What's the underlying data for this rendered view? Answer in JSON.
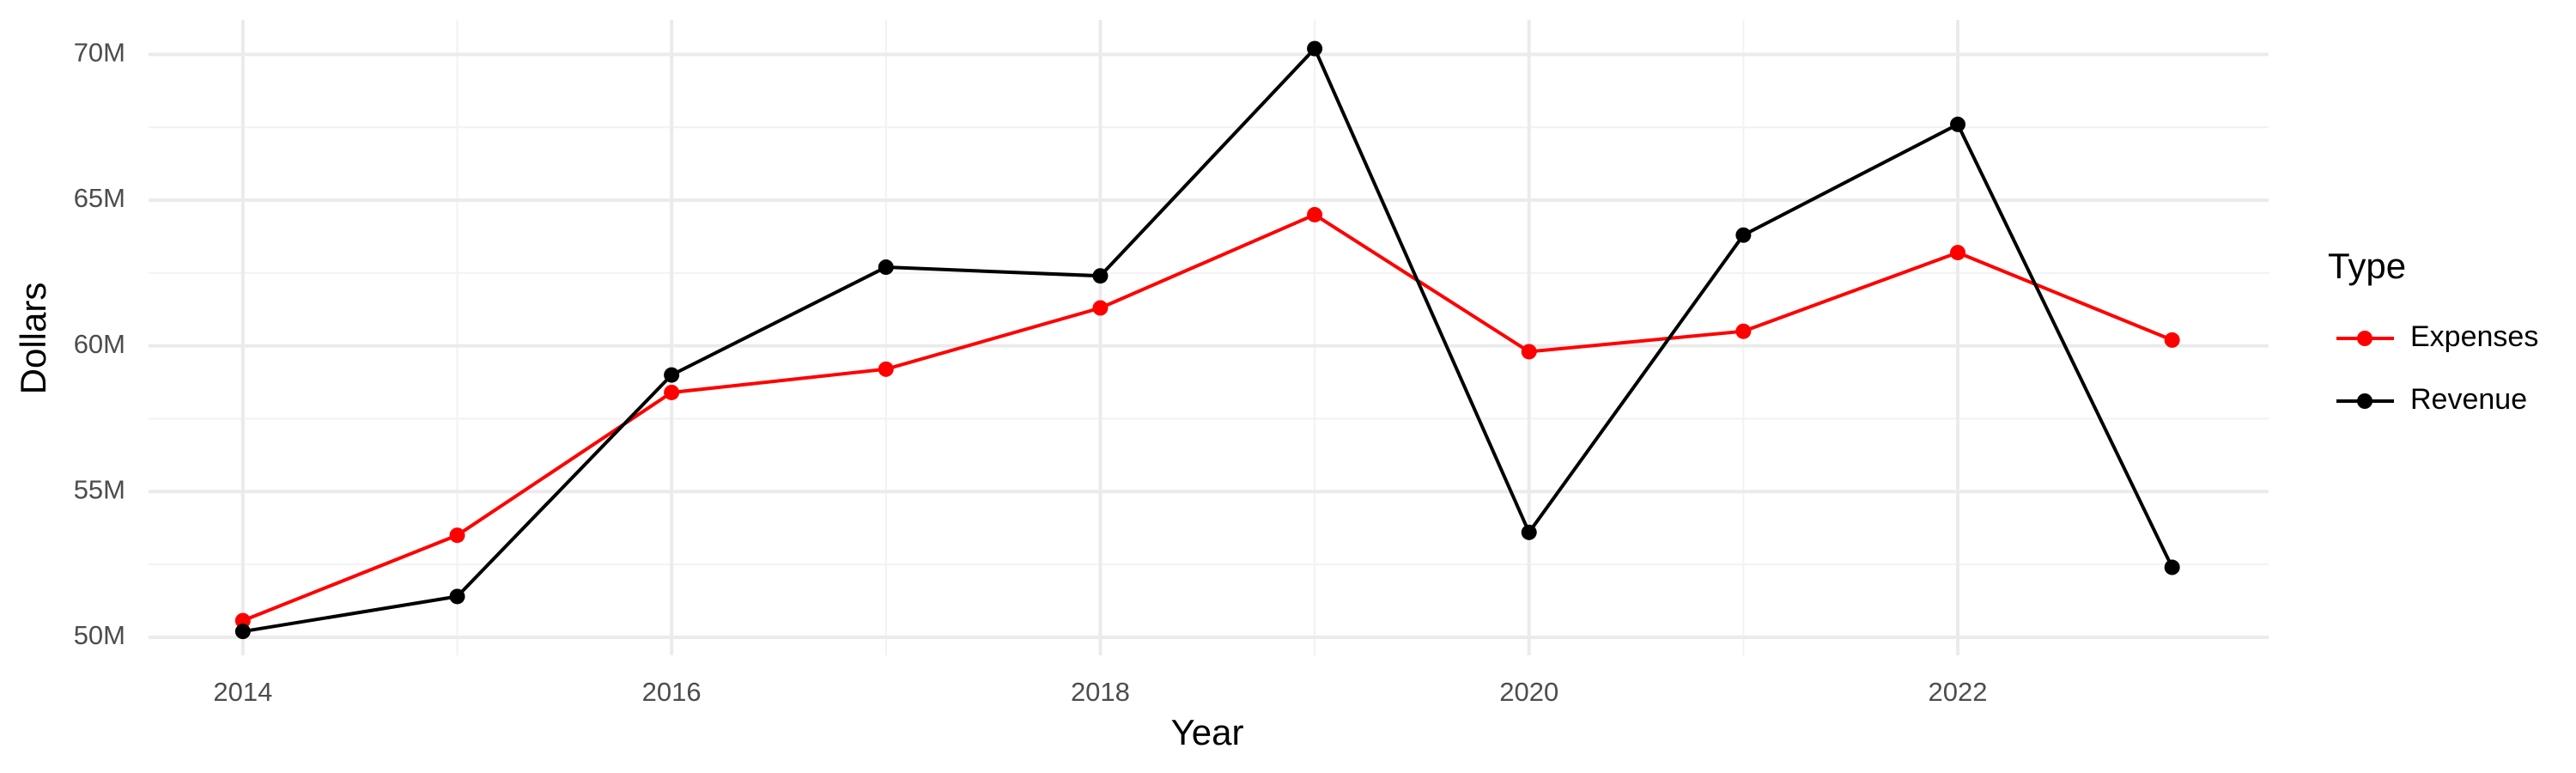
{
  "chart_data": {
    "type": "line",
    "x_label": "Year",
    "y_label": "Dollars",
    "legend_title": "Type",
    "x": [
      2014,
      2015,
      2016,
      2017,
      2018,
      2019,
      2020,
      2021,
      2022,
      2023
    ],
    "series": [
      {
        "name": "Expenses",
        "color": "#ff0000",
        "values": [
          50570000,
          53500000,
          58400000,
          59200000,
          61300000,
          64500000,
          59800000,
          60500000,
          63200000,
          60200000
        ]
      },
      {
        "name": "Revenue",
        "color": "#000000",
        "values": [
          50200000,
          51400000,
          59000000,
          62700000,
          62400000,
          70200000,
          53600000,
          63800000,
          67600000,
          52400000
        ]
      }
    ],
    "xlim": [
      2013.56,
      2023.45
    ],
    "xticks": [
      2014,
      2016,
      2018,
      2020,
      2022
    ],
    "ylim": [
      49380000,
      71190000
    ],
    "yticks": [
      {
        "value": 50000000,
        "label": "50M"
      },
      {
        "value": 55000000,
        "label": "55M"
      },
      {
        "value": 60000000,
        "label": "60M"
      },
      {
        "value": 65000000,
        "label": "65M"
      },
      {
        "value": 70000000,
        "label": "70M"
      }
    ],
    "grid": true,
    "legend": "right"
  }
}
